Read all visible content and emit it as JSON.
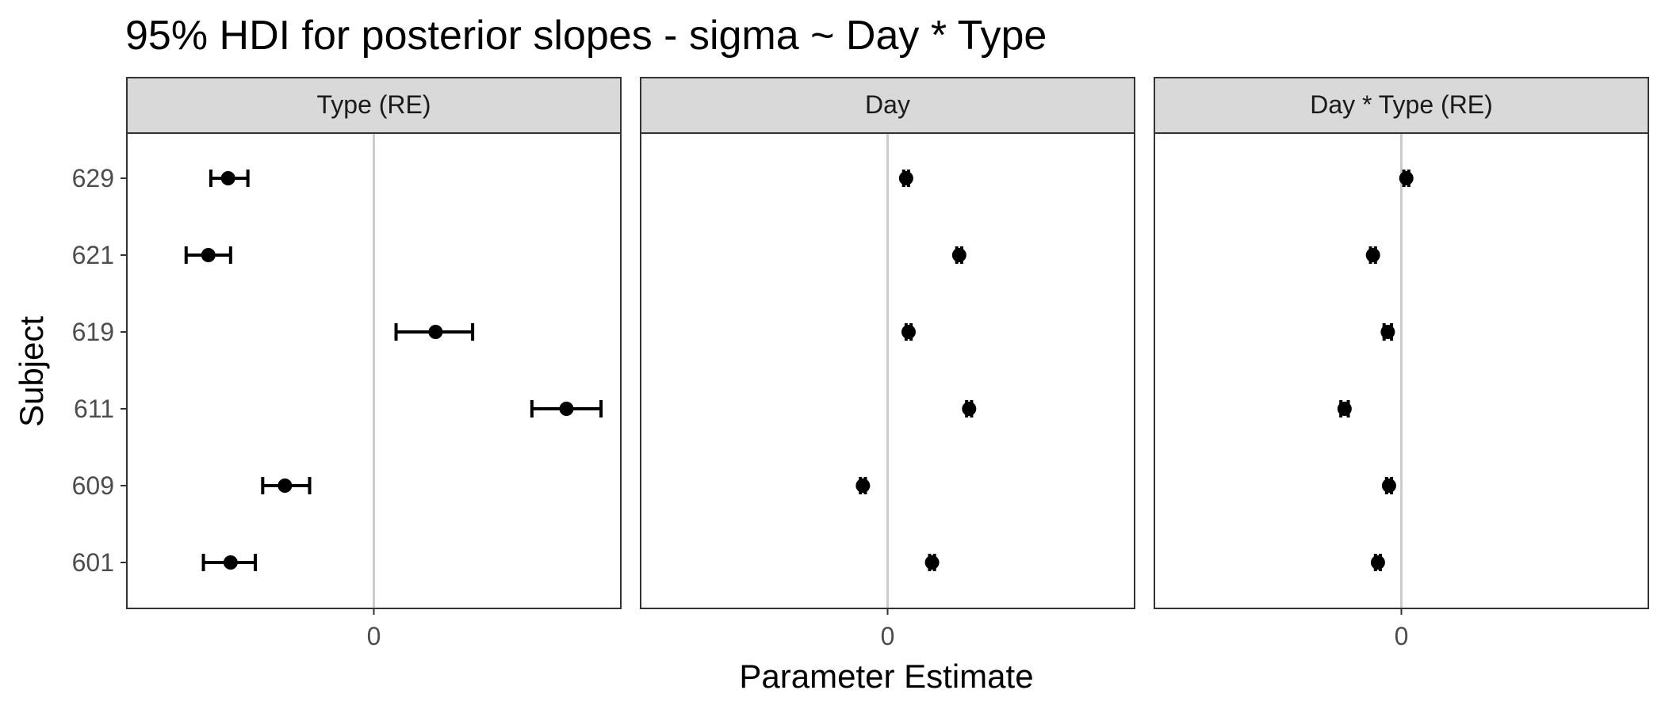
{
  "chart_data": {
    "type": "scatter",
    "title": "95% HDI for posterior slopes - sigma ~ Day * Type",
    "xlabel": "Parameter Estimate",
    "ylabel": "Subject",
    "subjects": [
      "601",
      "609",
      "611",
      "619",
      "621",
      "629"
    ],
    "x_tick_label": "0",
    "reference_line": 0,
    "panels": [
      {
        "name": "Type (RE)",
        "xlim": [
          -1.0,
          1.0
        ],
        "points": [
          {
            "subject": "629",
            "estimate": -0.59,
            "lower": -0.66,
            "upper": -0.51
          },
          {
            "subject": "621",
            "estimate": -0.67,
            "lower": -0.76,
            "upper": -0.58
          },
          {
            "subject": "619",
            "estimate": 0.25,
            "lower": 0.09,
            "upper": 0.4
          },
          {
            "subject": "611",
            "estimate": 0.78,
            "lower": 0.64,
            "upper": 0.92
          },
          {
            "subject": "609",
            "estimate": -0.36,
            "lower": -0.45,
            "upper": -0.26
          },
          {
            "subject": "601",
            "estimate": -0.58,
            "lower": -0.69,
            "upper": -0.48
          }
        ]
      },
      {
        "name": "Day",
        "xlim": [
          -1.0,
          1.0
        ],
        "points": [
          {
            "subject": "629",
            "estimate": 0.075,
            "lower": 0.065,
            "upper": 0.085
          },
          {
            "subject": "621",
            "estimate": 0.29,
            "lower": 0.28,
            "upper": 0.3
          },
          {
            "subject": "619",
            "estimate": 0.085,
            "lower": 0.075,
            "upper": 0.095
          },
          {
            "subject": "611",
            "estimate": 0.33,
            "lower": 0.32,
            "upper": 0.34
          },
          {
            "subject": "609",
            "estimate": -0.1,
            "lower": -0.11,
            "upper": -0.09
          },
          {
            "subject": "601",
            "estimate": 0.18,
            "lower": 0.17,
            "upper": 0.19
          }
        ]
      },
      {
        "name": "Day * Type (RE)",
        "xlim": [
          -1.0,
          1.0
        ],
        "points": [
          {
            "subject": "629",
            "estimate": 0.02,
            "lower": 0.01,
            "upper": 0.03
          },
          {
            "subject": "621",
            "estimate": -0.115,
            "lower": -0.125,
            "upper": -0.105
          },
          {
            "subject": "619",
            "estimate": -0.055,
            "lower": -0.07,
            "upper": -0.04
          },
          {
            "subject": "611",
            "estimate": -0.23,
            "lower": -0.245,
            "upper": -0.215
          },
          {
            "subject": "609",
            "estimate": -0.05,
            "lower": -0.06,
            "upper": -0.04
          },
          {
            "subject": "601",
            "estimate": -0.095,
            "lower": -0.105,
            "upper": -0.085
          }
        ]
      }
    ],
    "grid": false,
    "colors": {
      "point": "#000000",
      "zero_line": "#cccccc",
      "strip_fill": "#d9d9d9",
      "panel_border": "#333333"
    }
  }
}
